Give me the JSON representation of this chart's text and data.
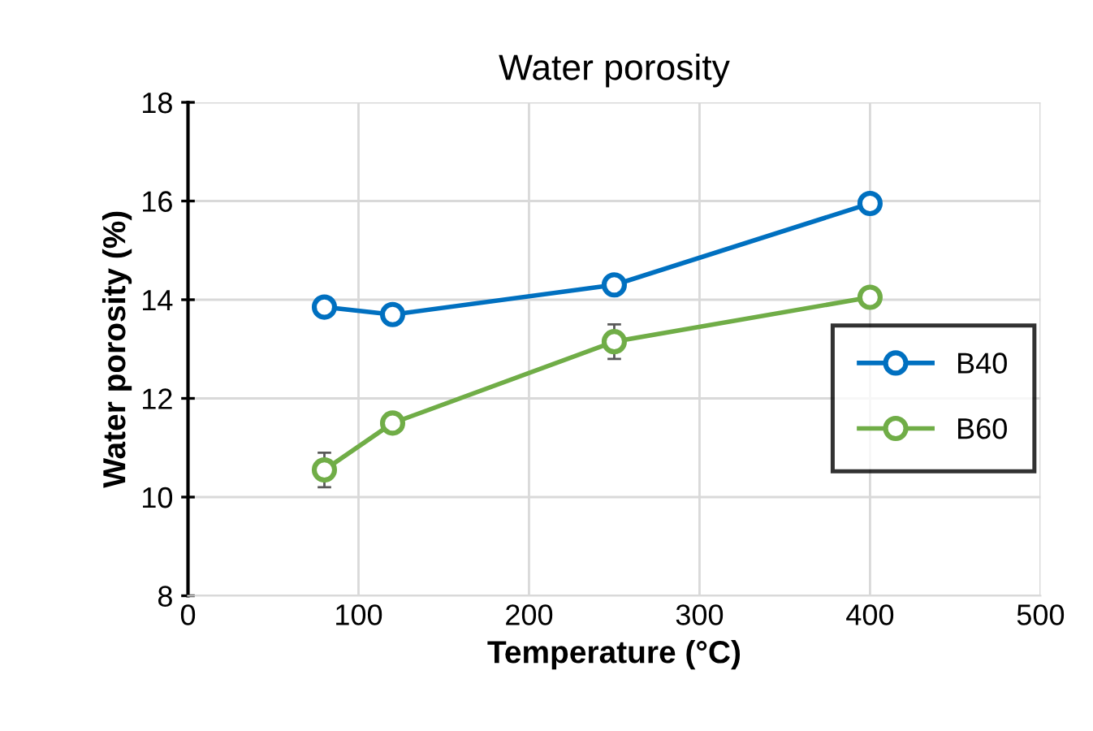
{
  "chart_data": {
    "type": "line",
    "title": "Water porosity",
    "xlabel": "Temperature (°C)",
    "ylabel": "Water porosity (%)",
    "xlim": [
      0,
      500
    ],
    "xticks": [
      0,
      100,
      200,
      300,
      400,
      500
    ],
    "ylim": [
      8,
      18
    ],
    "yticks": [
      8,
      10,
      12,
      14,
      16,
      18
    ],
    "grid": true,
    "legend": "right",
    "marker": "circle",
    "line_style": "solid",
    "series": [
      {
        "name": "B40",
        "color": "#0070c0",
        "x": [
          80,
          120,
          250,
          400
        ],
        "values": [
          13.85,
          13.7,
          14.3,
          15.95
        ]
      },
      {
        "name": "B60",
        "color": "#70ad47",
        "x": [
          80,
          120,
          250,
          400
        ],
        "values": [
          10.55,
          11.5,
          13.15,
          14.05
        ],
        "errors": [
          0.35,
          null,
          0.35,
          null
        ]
      }
    ]
  }
}
